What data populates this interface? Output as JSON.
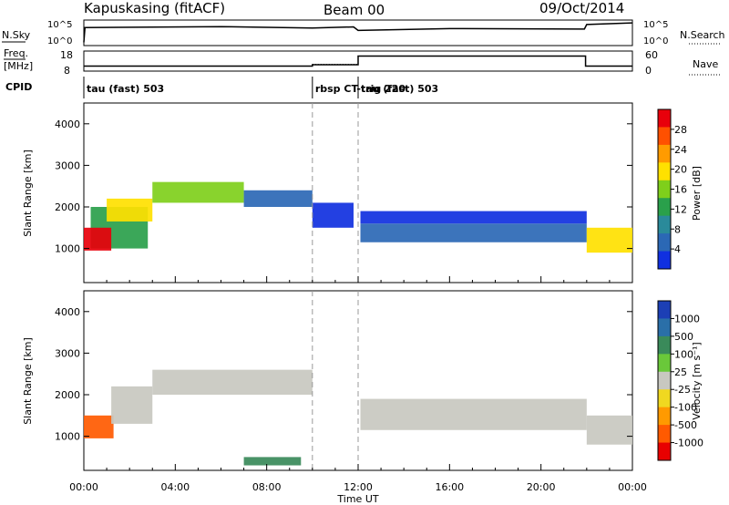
{
  "header": {
    "station": "Kapuskasing (fitACF)",
    "beam": "Beam 00",
    "date": "09/Oct/2014"
  },
  "top_panels": {
    "nsky_label": "N.Sky",
    "nsky_ticks": [
      "10^5",
      "10^0"
    ],
    "nsearch_label": "N.Search",
    "nsearch_ticks": [
      "10^5",
      "10^0"
    ],
    "freq_label_line1": "Freq.",
    "freq_label_line2": "[MHz]",
    "freq_ticks": [
      "18",
      "8"
    ],
    "nave_label": "Nave",
    "nave_ticks": [
      "60",
      "0"
    ],
    "cpid_label": "CPID",
    "cpid_segments": [
      {
        "start_hour": 0.0,
        "end_hour": 10.0,
        "label": "tau (fast) 503"
      },
      {
        "start_hour": 10.0,
        "end_hour": 12.0,
        "label": "rbsp CT-trig 220"
      },
      {
        "start_hour": 12.0,
        "end_hour": 24.0,
        "label": "tau (fast) 503"
      }
    ]
  },
  "power_panel": {
    "ylabel": "Slant Range [km]",
    "colorbar_label": "Power [dB]",
    "colorbar_ticks": [
      "28",
      "24",
      "20",
      "16",
      "12",
      "8",
      "4"
    ],
    "colorbar_colors": [
      "#e8000b",
      "#ff5000",
      "#ff9b00",
      "#ffe100",
      "#7fcf1b",
      "#2aa04b",
      "#2a8a9a",
      "#2b68b5",
      "#1030e0"
    ]
  },
  "velocity_panel": {
    "ylabel": "Slant Range [km]",
    "colorbar_label": "Velocity [m s⁻¹]",
    "colorbar_ticks": [
      "1000",
      "500",
      "100",
      "25",
      "-25",
      "-100",
      "-500",
      "-1000"
    ],
    "colorbar_colors": [
      "#1c3fb5",
      "#2a6fa8",
      "#3a8a5a",
      "#6ac83a",
      "#c8c8c0",
      "#f0d820",
      "#ff9a00",
      "#ff5a00",
      "#e80000"
    ]
  },
  "xaxis": {
    "label": "Time UT",
    "ticks": [
      "00:00",
      "04:00",
      "08:00",
      "12:00",
      "16:00",
      "20:00",
      "00:00"
    ]
  },
  "chart_data": {
    "type": "heatmap",
    "title": "Kapuskasing (fitACF)",
    "xlabel": "Time UT",
    "ylabel": "Slant Range [km]",
    "xlim_hours": [
      0,
      24
    ],
    "ylim_km": [
      180,
      4500
    ],
    "ytick_values": [
      1000,
      2000,
      3000,
      4000
    ],
    "cpid_change_hours": [
      10.0,
      12.0
    ],
    "nsky_trace": [
      [
        0.0,
        0.1
      ],
      [
        0.05,
        0.72
      ],
      [
        6,
        0.76
      ],
      [
        10.0,
        0.7
      ],
      [
        11.8,
        0.75
      ],
      [
        12.0,
        0.6
      ],
      [
        16,
        0.68
      ],
      [
        21.9,
        0.66
      ],
      [
        22.0,
        0.85
      ],
      [
        24,
        0.92
      ]
    ],
    "freq_trace_mhz": [
      [
        0,
        10.5
      ],
      [
        10.0,
        10.5
      ],
      [
        10.0,
        11.2
      ],
      [
        12.0,
        11.2
      ],
      [
        12.0,
        15.5
      ],
      [
        21.95,
        15.5
      ],
      [
        21.95,
        10.5
      ],
      [
        24,
        10.5
      ]
    ],
    "nave_trace": [
      [
        10.0,
        20
      ],
      [
        12.0,
        20
      ],
      [
        12.0,
        38
      ]
    ],
    "power_segments": [
      {
        "t0": 0.3,
        "t1": 2.8,
        "r0": 1000,
        "r1": 2000,
        "dB": 12
      },
      {
        "t0": 0.0,
        "t1": 1.2,
        "r0": 950,
        "r1": 1500,
        "dB": 28
      },
      {
        "t0": 1.0,
        "t1": 3.0,
        "r0": 1650,
        "r1": 2200,
        "dB": 18
      },
      {
        "t0": 3.0,
        "t1": 7.0,
        "r0": 2100,
        "r1": 2600,
        "dB": 16
      },
      {
        "t0": 7.0,
        "t1": 10.0,
        "r0": 2000,
        "r1": 2400,
        "dB": 8
      },
      {
        "t0": 10.0,
        "t1": 11.8,
        "r0": 1500,
        "r1": 2100,
        "dB": 4
      },
      {
        "t0": 12.1,
        "t1": 22.0,
        "r0": 1150,
        "r1": 1600,
        "dB": 8
      },
      {
        "t0": 12.1,
        "t1": 22.0,
        "r0": 1600,
        "r1": 1900,
        "dB": 4
      },
      {
        "t0": 22.0,
        "t1": 24.0,
        "r0": 900,
        "r1": 1500,
        "dB": 20
      }
    ],
    "velocity_segments": [
      {
        "t0": 0.0,
        "t1": 1.3,
        "r0": 950,
        "r1": 1500,
        "v": -500
      },
      {
        "t0": 1.2,
        "t1": 3.0,
        "r0": 1300,
        "r1": 2200,
        "v": 0
      },
      {
        "t0": 3.0,
        "t1": 10.0,
        "r0": 2000,
        "r1": 2600,
        "v": 0
      },
      {
        "t0": 7.0,
        "t1": 9.5,
        "r0": 300,
        "r1": 500,
        "v": 100
      },
      {
        "t0": 12.1,
        "t1": 22.0,
        "r0": 1150,
        "r1": 1900,
        "v": 0
      },
      {
        "t0": 22.0,
        "t1": 24.0,
        "r0": 800,
        "r1": 1500,
        "v": 0
      }
    ]
  }
}
